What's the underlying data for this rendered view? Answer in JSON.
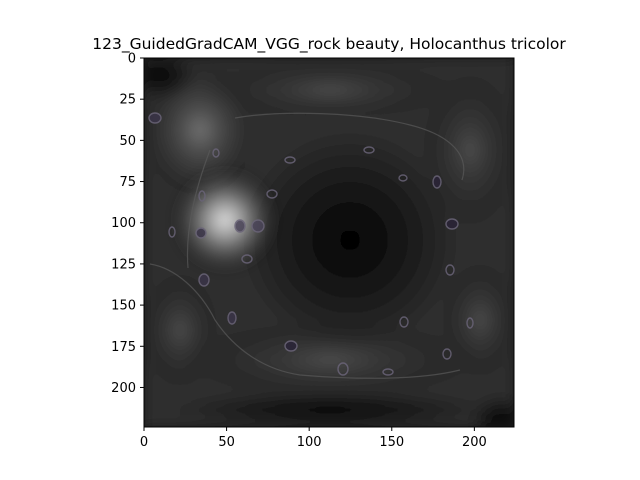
{
  "figure": {
    "title": "123_GuidedGradCAM_VGG_rock beauty, Holocanthus tricolor",
    "image_description_colors": {
      "background": "#000000",
      "highlight": "#e8e8e8",
      "cell_outline": "#6a6478"
    },
    "x_axis": {
      "range": [
        0,
        224
      ],
      "ticks": [
        0,
        50,
        100,
        150,
        200
      ],
      "tick_labels": [
        "0",
        "50",
        "100",
        "150",
        "200"
      ]
    },
    "y_axis": {
      "range": [
        0,
        224
      ],
      "inverted": true,
      "ticks": [
        0,
        25,
        50,
        75,
        100,
        125,
        150,
        175,
        200
      ],
      "tick_labels": [
        "0",
        "25",
        "50",
        "75",
        "100",
        "125",
        "150",
        "175",
        "200"
      ]
    }
  }
}
